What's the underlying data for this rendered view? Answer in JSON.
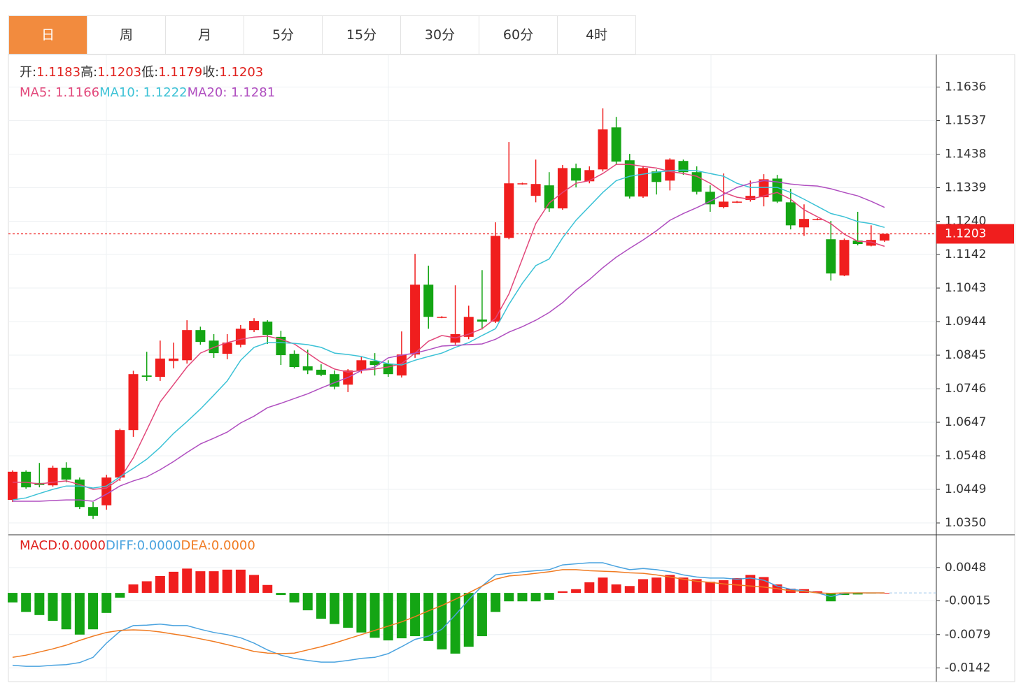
{
  "tabs": [
    "日",
    "周",
    "月",
    "5分",
    "15分",
    "30分",
    "60分",
    "4时"
  ],
  "active_tab": 0,
  "chart_data": [
    {
      "type": "candlestick",
      "up_color": "#f01e1e",
      "down_color": "#14a514",
      "readout": [
        {
          "name": "开:",
          "value": 1.1183
        },
        {
          "name": "高:",
          "value": 1.1203
        },
        {
          "name": "低:",
          "value": 1.1179
        },
        {
          "name": "收:",
          "value": 1.1203
        }
      ],
      "readout_color": "#e0201c",
      "open": [
        1.0418,
        1.0501,
        1.0468,
        1.0461,
        1.0513,
        1.0478,
        1.0397,
        1.0402,
        1.0484,
        1.0624,
        1.0785,
        1.0781,
        1.0828,
        1.083,
        1.0919,
        1.0888,
        1.0849,
        1.0876,
        1.0919,
        1.0944,
        1.0899,
        1.0849,
        1.0812,
        1.0802,
        1.0789,
        1.0758,
        1.08,
        1.0828,
        1.082,
        1.0785,
        1.0847,
        1.1053,
        1.0956,
        1.0882,
        1.0899,
        1.095,
        1.0944,
        1.1191,
        1.135,
        1.1315,
        1.1346,
        1.1278,
        1.1397,
        1.1358,
        1.1393,
        1.1517,
        1.142,
        1.1313,
        1.1387,
        1.136,
        1.1418,
        1.1385,
        1.1327,
        1.1282,
        1.1296,
        1.1303,
        1.1311,
        1.1366,
        1.1296,
        1.1222,
        1.1245,
        1.1187,
        1.108,
        1.1183,
        1.1168,
        1.1183
      ],
      "high": [
        1.0505,
        1.0505,
        1.0527,
        1.0519,
        1.0529,
        1.0484,
        1.0412,
        1.0492,
        1.0628,
        1.0799,
        1.0855,
        1.0888,
        1.0882,
        1.0948,
        1.0929,
        1.0907,
        1.0907,
        1.0934,
        1.0954,
        1.0948,
        1.0917,
        1.0859,
        1.0861,
        1.0818,
        1.08,
        1.0804,
        1.0841,
        1.0851,
        1.083,
        1.0915,
        1.1144,
        1.1109,
        1.096,
        1.1051,
        1.0991,
        1.1096,
        1.1237,
        1.1474,
        1.1354,
        1.1422,
        1.1385,
        1.1406,
        1.141,
        1.1402,
        1.1573,
        1.1548,
        1.1439,
        1.1404,
        1.1393,
        1.1426,
        1.1422,
        1.1402,
        1.1346,
        1.1381,
        1.13,
        1.136,
        1.1379,
        1.1377,
        1.1336,
        1.129,
        1.1249,
        1.1241,
        1.1189,
        1.1268,
        1.1228,
        1.1203
      ],
      "low": [
        1.0412,
        1.0451,
        1.0455,
        1.0457,
        1.047,
        1.0391,
        1.0362,
        1.0389,
        1.0474,
        1.0604,
        1.0769,
        1.0769,
        1.0806,
        1.082,
        1.0876,
        1.0837,
        1.0833,
        1.0868,
        1.0913,
        1.0878,
        1.0816,
        1.0806,
        1.0789,
        1.0783,
        1.0744,
        1.0736,
        1.0791,
        1.0785,
        1.0781,
        1.0779,
        1.0837,
        1.0923,
        1.0954,
        1.0876,
        1.0892,
        1.0921,
        1.094,
        1.1187,
        1.1348,
        1.1296,
        1.1268,
        1.1274,
        1.134,
        1.1352,
        1.1387,
        1.1406,
        1.1307,
        1.1309,
        1.1319,
        1.1331,
        1.1377,
        1.1319,
        1.1268,
        1.1278,
        1.1294,
        1.1298,
        1.1284,
        1.1294,
        1.1216,
        1.1197,
        1.1243,
        1.1065,
        1.1078,
        1.1169,
        1.1166,
        1.1179
      ],
      "close": [
        1.0501,
        1.0455,
        1.0462,
        1.0513,
        1.0478,
        1.0397,
        1.0371,
        1.0484,
        1.0624,
        1.0789,
        1.0781,
        1.0835,
        1.0835,
        1.0919,
        1.0884,
        1.0851,
        1.0882,
        1.0923,
        1.0946,
        1.0905,
        1.0845,
        1.081,
        1.08,
        1.0787,
        1.0752,
        1.08,
        1.083,
        1.0816,
        1.0789,
        1.0847,
        1.1053,
        1.0958,
        1.0958,
        1.0907,
        1.0958,
        1.0944,
        1.1197,
        1.1352,
        1.1352,
        1.135,
        1.1278,
        1.1397,
        1.136,
        1.1391,
        1.1511,
        1.1416,
        1.1313,
        1.1397,
        1.1356,
        1.1422,
        1.1385,
        1.1327,
        1.129,
        1.1298,
        1.1298,
        1.1315,
        1.1364,
        1.1298,
        1.1228,
        1.1247,
        1.1247,
        1.1086,
        1.1185,
        1.1173,
        1.1185,
        1.1203
      ],
      "series": [
        {
          "name": "MA5:",
          "color": "#e2477a",
          "readout": 1.1166,
          "values": [
            1.047,
            1.047,
            1.0465,
            1.047,
            1.0474,
            1.0463,
            1.0449,
            1.0453,
            1.048,
            1.0542,
            1.0624,
            1.0707,
            1.0758,
            1.081,
            1.0851,
            1.0868,
            1.0882,
            1.0892,
            1.0898,
            1.0901,
            1.0892,
            1.0878,
            1.0851,
            1.0824,
            1.0804,
            1.0795,
            1.08,
            1.0804,
            1.081,
            1.082,
            1.0851,
            1.0886,
            1.0903,
            1.0896,
            1.0907,
            1.0923,
            1.0954,
            1.1026,
            1.1129,
            1.1233,
            1.1294,
            1.1325,
            1.1352,
            1.136,
            1.1381,
            1.1408,
            1.1408,
            1.1402,
            1.1397,
            1.1387,
            1.1381,
            1.1373,
            1.1352,
            1.1325,
            1.1311,
            1.1305,
            1.1315,
            1.1325,
            1.1305,
            1.1274,
            1.1253,
            1.1233,
            1.1202,
            1.1181,
            1.1179,
            1.1166
          ]
        },
        {
          "name": "MA10:",
          "color": "#3cc2d6",
          "readout": 1.1222,
          "values": [
            1.0418,
            1.0424,
            1.0437,
            1.0449,
            1.0459,
            1.0459,
            1.0453,
            1.0459,
            1.0486,
            1.0511,
            1.0538,
            1.0573,
            1.0614,
            1.0649,
            1.0686,
            1.0727,
            1.0769,
            1.083,
            1.0868,
            1.0882,
            1.0882,
            1.088,
            1.0876,
            1.0868,
            1.0851,
            1.0847,
            1.0841,
            1.083,
            1.082,
            1.0816,
            1.083,
            1.0841,
            1.0851,
            1.0868,
            1.0882,
            1.0903,
            1.0923,
            1.0995,
            1.1057,
            1.1109,
            1.1129,
            1.1191,
            1.1243,
            1.1284,
            1.1325,
            1.136,
            1.1373,
            1.1379,
            1.1385,
            1.1389,
            1.1391,
            1.1389,
            1.1381,
            1.1373,
            1.1352,
            1.134,
            1.134,
            1.134,
            1.1325,
            1.1305,
            1.1284,
            1.1263,
            1.1253,
            1.1239,
            1.1233,
            1.1222
          ]
        },
        {
          "name": "MA20:",
          "color": "#b04fc0",
          "readout": 1.1281,
          "values": [
            1.0414,
            1.0414,
            1.0414,
            1.0416,
            1.0418,
            1.0418,
            1.0414,
            1.0435,
            1.0459,
            1.0474,
            1.0486,
            1.0507,
            1.0531,
            1.0558,
            1.0583,
            1.06,
            1.0618,
            1.0645,
            1.0665,
            1.069,
            1.0703,
            1.0717,
            1.0731,
            1.0748,
            1.0764,
            1.0779,
            1.08,
            1.081,
            1.0837,
            1.0845,
            1.0851,
            1.0861,
            1.0872,
            1.0874,
            1.0876,
            1.0878,
            1.0892,
            1.0913,
            1.0929,
            1.0948,
            1.0971,
            1.1,
            1.1037,
            1.1068,
            1.1103,
            1.1134,
            1.116,
            1.1185,
            1.1212,
            1.1243,
            1.1263,
            1.128,
            1.1299,
            1.1319,
            1.134,
            1.1352,
            1.136,
            1.1356,
            1.135,
            1.1346,
            1.1344,
            1.1336,
            1.1325,
            1.1315,
            1.1299,
            1.1281
          ]
        }
      ],
      "ylim": [
        1.0315,
        1.1732
      ],
      "yticks": [
        {
          "value": 1.035,
          "label": "1.0350"
        },
        1.0449,
        1.0548,
        1.0647,
        1.0746,
        1.0845,
        1.0944,
        1.1043,
        1.1142,
        {
          "value": 1.124,
          "label": "1.1240"
        },
        1.1339,
        1.1438,
        1.1537,
        1.1636
      ],
      "grid": true,
      "last_price_color": "#f01e1e"
    },
    {
      "type": "macd",
      "up_color": "#f01e1e",
      "down_color": "#14a514",
      "bars": {
        "name": "MACD:",
        "color": "#e0201c",
        "readout": "0.0000",
        "values": [
          -0.0018,
          -0.0036,
          -0.0042,
          -0.0053,
          -0.0069,
          -0.0079,
          -0.0069,
          -0.0038,
          -0.0009,
          0.0016,
          0.0022,
          0.0032,
          0.004,
          0.0046,
          0.0041,
          0.0041,
          0.0044,
          0.0044,
          0.0034,
          0.0015,
          -0.0004,
          -0.0018,
          -0.0033,
          -0.0049,
          -0.0059,
          -0.0066,
          -0.0075,
          -0.0085,
          -0.009,
          -0.0086,
          -0.0082,
          -0.0091,
          -0.0107,
          -0.0115,
          -0.0102,
          -0.0082,
          -0.0036,
          -0.0016,
          -0.0016,
          -0.0016,
          -0.0013,
          0.0003,
          0.0007,
          0.002,
          0.0029,
          0.0016,
          0.0013,
          0.0026,
          0.0029,
          0.0034,
          0.0029,
          0.0026,
          0.0021,
          0.0024,
          0.0028,
          0.0034,
          0.003,
          0.0016,
          0.0008,
          0.0007,
          0.0003,
          -0.0016,
          -0.0004,
          -0.0003,
          -0.0001,
          0
        ]
      },
      "series": [
        {
          "name": "DIFF:",
          "color": "#4aa3df",
          "readout": "0.0000",
          "values": [
            -0.0137,
            -0.0139,
            -0.0139,
            -0.0137,
            -0.0136,
            -0.0132,
            -0.0122,
            -0.0095,
            -0.0073,
            -0.0062,
            -0.0061,
            -0.0059,
            -0.0062,
            -0.0062,
            -0.0069,
            -0.0075,
            -0.0079,
            -0.0085,
            -0.0095,
            -0.0108,
            -0.0118,
            -0.0124,
            -0.0128,
            -0.0131,
            -0.0131,
            -0.0128,
            -0.0124,
            -0.0122,
            -0.0115,
            -0.0102,
            -0.0088,
            -0.0082,
            -0.0069,
            -0.0042,
            -0.0013,
            0.0013,
            0.0034,
            0.0037,
            0.004,
            0.0042,
            0.0044,
            0.0053,
            0.0055,
            0.0057,
            0.0057,
            0.005,
            0.0044,
            0.0046,
            0.0044,
            0.004,
            0.0034,
            0.003,
            0.0028,
            0.0028,
            0.0026,
            0.0028,
            0.0024,
            0.0013,
            0.0007,
            0.0004,
            0,
            -0.0007,
            -0.0001,
            0,
            0,
            0
          ]
        },
        {
          "name": "DEA:",
          "color": "#f07b22",
          "readout": "0.0000",
          "values": [
            -0.0122,
            -0.0118,
            -0.0112,
            -0.0106,
            -0.0099,
            -0.009,
            -0.0082,
            -0.0075,
            -0.0071,
            -0.007,
            -0.0071,
            -0.0074,
            -0.0078,
            -0.0082,
            -0.0087,
            -0.0092,
            -0.0098,
            -0.0104,
            -0.0111,
            -0.0114,
            -0.0115,
            -0.0114,
            -0.0108,
            -0.0102,
            -0.0095,
            -0.0087,
            -0.0079,
            -0.0071,
            -0.0063,
            -0.0055,
            -0.0045,
            -0.0034,
            -0.0024,
            -0.0012,
            0,
            0.0013,
            0.0026,
            0.0032,
            0.0034,
            0.0037,
            0.004,
            0.0044,
            0.0044,
            0.0042,
            0.0041,
            0.004,
            0.0038,
            0.0037,
            0.0034,
            0.003,
            0.0026,
            0.0022,
            0.002,
            0.0017,
            0.0015,
            0.0013,
            0.0011,
            0.0008,
            0.0004,
            0.0003,
            0,
            -0.0001,
            0,
            0,
            0,
            0
          ]
        }
      ],
      "ylim": [
        -0.0168,
        0.011
      ],
      "yticks": [
        0.0048,
        -0.0015,
        -0.0079,
        -0.0142
      ],
      "grid": true
    }
  ]
}
